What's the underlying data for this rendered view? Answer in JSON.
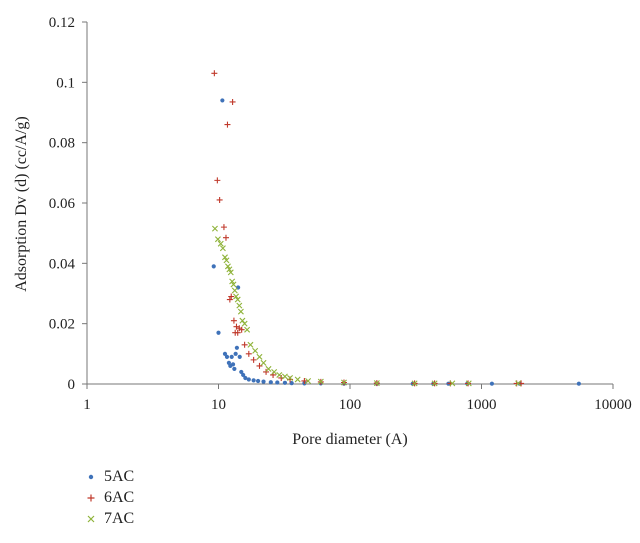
{
  "chart_data": {
    "type": "scatter",
    "xlabel": "Pore diameter (A)",
    "ylabel": "Adsorption Dv (d) (cc/A/g)",
    "x_scale": "log",
    "xlim": [
      1,
      10000
    ],
    "ylim": [
      0,
      0.12
    ],
    "x_ticks": [
      1,
      10,
      100,
      1000,
      10000
    ],
    "x_tick_labels": [
      "1",
      "10",
      "100",
      "1000",
      "10000"
    ],
    "y_ticks": [
      0,
      0.02,
      0.04,
      0.06,
      0.08,
      0.1,
      0.12
    ],
    "y_tick_labels": [
      "0",
      "0.02",
      "0.04",
      "0.06",
      "0.08",
      "0.1",
      "0.12"
    ],
    "grid": false,
    "legend_position": "bottom-left",
    "series": [
      {
        "name": "5AC",
        "color": "#3f72b9",
        "marker": "dot",
        "points": [
          [
            9.2,
            0.039
          ],
          [
            10.0,
            0.017
          ],
          [
            10.7,
            0.094
          ],
          [
            11.2,
            0.01
          ],
          [
            11.6,
            0.009
          ],
          [
            12.0,
            0.007
          ],
          [
            12.3,
            0.006
          ],
          [
            12.6,
            0.009
          ],
          [
            12.9,
            0.0065
          ],
          [
            13.2,
            0.005
          ],
          [
            13.5,
            0.01
          ],
          [
            13.8,
            0.012
          ],
          [
            14.1,
            0.032
          ],
          [
            14.5,
            0.009
          ],
          [
            14.9,
            0.004
          ],
          [
            15.4,
            0.003
          ],
          [
            16.0,
            0.002
          ],
          [
            17.0,
            0.0015
          ],
          [
            18.5,
            0.0012
          ],
          [
            20.0,
            0.001
          ],
          [
            22.0,
            0.0008
          ],
          [
            25.0,
            0.0006
          ],
          [
            28.0,
            0.0005
          ],
          [
            32.0,
            0.0004
          ],
          [
            36.0,
            0.0003
          ],
          [
            45.0,
            0.0002
          ],
          [
            60.0,
            0.0002
          ],
          [
            90.0,
            0.0001
          ],
          [
            160.0,
            0.0001
          ],
          [
            300.0,
            0.0001
          ],
          [
            430.0,
            0.0001
          ],
          [
            560.0,
            0.0001
          ],
          [
            780.0,
            0.0001
          ],
          [
            1200.0,
            0.0001
          ],
          [
            1950.0,
            0.0001
          ],
          [
            5500.0,
            0.0001
          ]
        ]
      },
      {
        "name": "6AC",
        "color": "#c0392b",
        "marker": "plus",
        "points": [
          [
            9.3,
            0.103
          ],
          [
            9.8,
            0.0675
          ],
          [
            10.2,
            0.061
          ],
          [
            11.0,
            0.052
          ],
          [
            11.4,
            0.0485
          ],
          [
            11.7,
            0.086
          ],
          [
            12.2,
            0.028
          ],
          [
            12.5,
            0.029
          ],
          [
            12.8,
            0.0935
          ],
          [
            13.1,
            0.021
          ],
          [
            13.4,
            0.017
          ],
          [
            13.7,
            0.019
          ],
          [
            14.0,
            0.017
          ],
          [
            14.4,
            0.0185
          ],
          [
            15.0,
            0.018
          ],
          [
            15.8,
            0.013
          ],
          [
            17.0,
            0.01
          ],
          [
            18.5,
            0.008
          ],
          [
            20.5,
            0.006
          ],
          [
            23.0,
            0.004
          ],
          [
            26.0,
            0.003
          ],
          [
            30.0,
            0.002
          ],
          [
            35.0,
            0.0015
          ],
          [
            45.0,
            0.001
          ],
          [
            60.0,
            0.0007
          ],
          [
            90.0,
            0.0005
          ],
          [
            160.0,
            0.0003
          ],
          [
            310.0,
            0.0002
          ],
          [
            440.0,
            0.0002
          ],
          [
            580.0,
            0.0002
          ],
          [
            790.0,
            0.0002
          ],
          [
            1850.0,
            0.0002
          ],
          [
            2000.0,
            0.0002
          ]
        ]
      },
      {
        "name": "7AC",
        "color": "#8fb33a",
        "marker": "x",
        "points": [
          [
            9.4,
            0.0515
          ],
          [
            9.9,
            0.048
          ],
          [
            10.4,
            0.0465
          ],
          [
            10.8,
            0.045
          ],
          [
            11.2,
            0.042
          ],
          [
            11.5,
            0.041
          ],
          [
            11.8,
            0.039
          ],
          [
            12.1,
            0.038
          ],
          [
            12.4,
            0.037
          ],
          [
            12.7,
            0.034
          ],
          [
            13.0,
            0.033
          ],
          [
            13.3,
            0.031
          ],
          [
            13.6,
            0.029
          ],
          [
            14.0,
            0.028
          ],
          [
            14.4,
            0.026
          ],
          [
            14.8,
            0.024
          ],
          [
            15.2,
            0.021
          ],
          [
            15.8,
            0.02
          ],
          [
            16.5,
            0.018
          ],
          [
            17.5,
            0.013
          ],
          [
            19.0,
            0.011
          ],
          [
            20.5,
            0.009
          ],
          [
            22.0,
            0.007
          ],
          [
            24.0,
            0.005
          ],
          [
            26.5,
            0.004
          ],
          [
            29.0,
            0.003
          ],
          [
            32.0,
            0.0025
          ],
          [
            35.0,
            0.002
          ],
          [
            40.0,
            0.0015
          ],
          [
            48.0,
            0.001
          ],
          [
            60.0,
            0.0008
          ],
          [
            90.0,
            0.0005
          ],
          [
            160.0,
            0.0003
          ],
          [
            310.0,
            0.0002
          ],
          [
            440.0,
            0.0002
          ],
          [
            600.0,
            0.0002
          ],
          [
            800.0,
            0.0002
          ],
          [
            1900.0,
            0.0002
          ]
        ]
      }
    ]
  }
}
